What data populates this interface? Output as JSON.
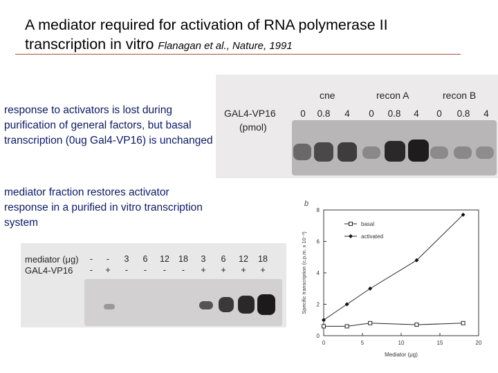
{
  "slide": {
    "title_line1": "A mediator required for activation of RNA polymerase II",
    "title_line2": "transcription in vitro",
    "citation": "Flanagan et al., Nature, 1991",
    "note1": "response to activators is lost during purification of general factors, but basal transcription (0ug Gal4-VP16)  is unchanged",
    "note2": "mediator fraction restores activator response in a purified in vitro transcription system"
  },
  "gel_top": {
    "row_label": "GAL4-VP16",
    "unit_label": "(pmol)",
    "groups": [
      {
        "label": "cne",
        "lanes": [
          "0",
          "0.8",
          "4"
        ]
      },
      {
        "label": "recon A",
        "lanes": [
          "0",
          "0.8",
          "4"
        ]
      },
      {
        "label": "recon B",
        "lanes": [
          "0",
          "0.8",
          "4"
        ]
      }
    ]
  },
  "gel_bottom": {
    "mediator_label": "mediator (μg)",
    "gal4_label": "GAL4-VP16",
    "mediator_values": [
      "-",
      "-",
      "3",
      "6",
      "12",
      "18",
      "3",
      "6",
      "12",
      "18"
    ],
    "gal4_values": [
      "-",
      "+",
      "-",
      "-",
      "-",
      "-",
      "+",
      "+",
      "+",
      "+"
    ]
  },
  "chart_data": {
    "type": "line",
    "panel_letter": "b",
    "xlabel": "Mediator (μg)",
    "ylabel": "Specific transcription (c.p.m. x 10⁻³)",
    "xlim": [
      0,
      20
    ],
    "ylim": [
      0,
      8
    ],
    "x_ticks": [
      "0",
      "5",
      "10",
      "15",
      "20"
    ],
    "y_ticks": [
      "0",
      "2",
      "4",
      "6",
      "8"
    ],
    "legend": "inside top-left",
    "series": [
      {
        "name": "basal",
        "marker": "open-square",
        "x": [
          0,
          3,
          6,
          12,
          18
        ],
        "y": [
          0.6,
          0.6,
          0.8,
          0.7,
          0.8
        ]
      },
      {
        "name": "activated",
        "marker": "filled-diamond",
        "x": [
          0,
          3,
          6,
          12,
          18
        ],
        "y": [
          1.0,
          2.0,
          3.0,
          4.8,
          7.7
        ]
      }
    ]
  }
}
